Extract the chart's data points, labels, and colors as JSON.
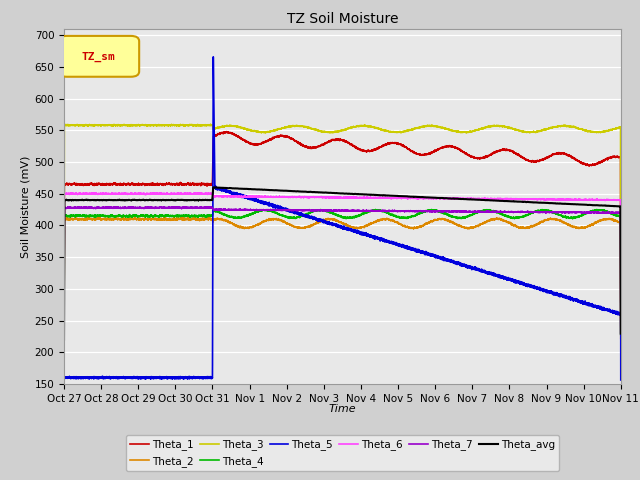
{
  "title": "TZ Soil Moisture",
  "xlabel": "Time",
  "ylabel": "Soil Moisture (mV)",
  "ylim": [
    150,
    710
  ],
  "yticks": [
    150,
    200,
    250,
    300,
    350,
    400,
    450,
    500,
    550,
    600,
    650,
    700
  ],
  "fig_bg_color": "#d0d0d0",
  "plot_bg_color": "#e8e8e8",
  "grid_color": "#ffffff",
  "series": {
    "Theta_1": {
      "color": "#cc0000",
      "lw": 1.2
    },
    "Theta_2": {
      "color": "#dd8800",
      "lw": 1.2
    },
    "Theta_3": {
      "color": "#cccc00",
      "lw": 1.2
    },
    "Theta_4": {
      "color": "#00bb00",
      "lw": 1.2
    },
    "Theta_5": {
      "color": "#0000dd",
      "lw": 1.2
    },
    "Theta_6": {
      "color": "#ff44ff",
      "lw": 1.2
    },
    "Theta_7": {
      "color": "#9900cc",
      "lw": 1.2
    },
    "Theta_avg": {
      "color": "#000000",
      "lw": 1.5
    }
  },
  "legend_label": "TZ_sm",
  "day_labels": [
    "Oct 27",
    "Oct 28",
    "Oct 29",
    "Oct 30",
    "Oct 31",
    "Nov 1",
    "Nov 2",
    "Nov 3",
    "Nov 4",
    "Nov 5",
    "Nov 6",
    "Nov 7",
    "Nov 8",
    "Nov 9",
    "Nov 10",
    "Nov 11"
  ],
  "legend_row1": [
    "Theta_1",
    "Theta_2",
    "Theta_3",
    "Theta_4",
    "Theta_5",
    "Theta_6"
  ],
  "legend_row2": [
    "Theta_7",
    "Theta_avg"
  ]
}
